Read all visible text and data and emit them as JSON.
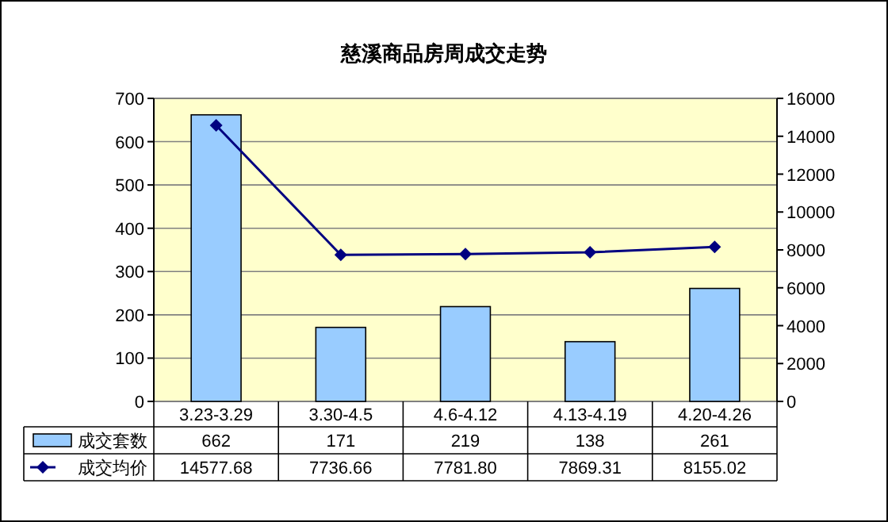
{
  "chart_data": {
    "type": "bar",
    "title": "慈溪商品房周成交走势",
    "categories": [
      "3.23-3.29",
      "3.30-4.5",
      "4.6-4.12",
      "4.13-4.19",
      "4.20-4.26"
    ],
    "series": [
      {
        "name": "成交套数",
        "color": "#99ccff",
        "values": [
          662,
          171,
          219,
          138,
          261
        ],
        "value_labels": [
          "662",
          "171",
          "219",
          "138",
          "261"
        ]
      },
      {
        "name": "成交均价",
        "type": "line",
        "axis": "y2",
        "color": "#000080",
        "marker": "diamond",
        "values": [
          14577.68,
          7736.66,
          7781.8,
          7869.31,
          8155.02
        ],
        "value_labels": [
          "14577.68",
          "7736.66",
          "7781.80",
          "7869.31",
          "8155.02"
        ]
      }
    ],
    "ylim": [
      0,
      700
    ],
    "yticks": [
      0,
      100,
      200,
      300,
      400,
      500,
      600,
      700
    ],
    "y2lim": [
      0,
      16000
    ],
    "y2ticks": [
      0,
      2000,
      4000,
      6000,
      8000,
      10000,
      12000,
      14000,
      16000
    ],
    "grid": "y",
    "legend": "bottom"
  }
}
